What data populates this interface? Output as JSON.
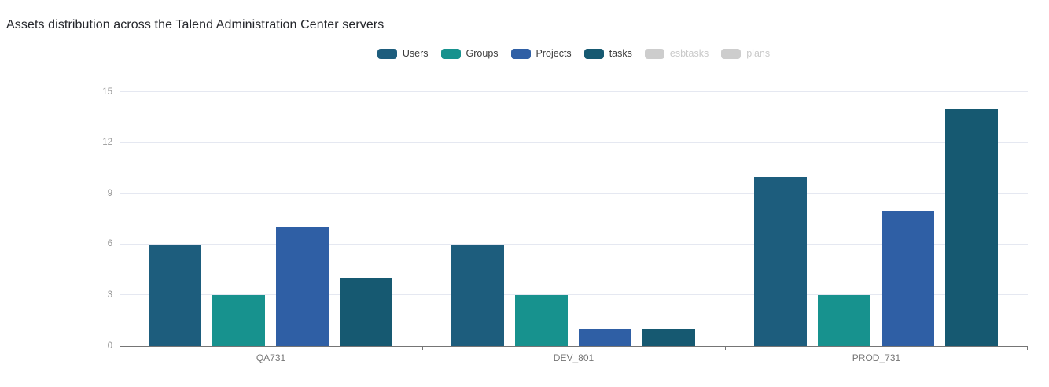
{
  "chart_data": {
    "type": "bar",
    "title": "Assets distribution across the Talend Administration Center servers",
    "categories": [
      "QA731",
      "DEV_801",
      "PROD_731"
    ],
    "series": [
      {
        "name": "Users",
        "color": "#1d5d7d",
        "enabled": true,
        "values": [
          6,
          6,
          10
        ]
      },
      {
        "name": "Groups",
        "color": "#17928e",
        "enabled": true,
        "values": [
          3,
          3,
          3
        ]
      },
      {
        "name": "Projects",
        "color": "#2f5fa5",
        "enabled": true,
        "values": [
          7,
          1,
          8
        ]
      },
      {
        "name": "tasks",
        "color": "#165971",
        "enabled": true,
        "values": [
          4,
          1,
          14
        ]
      },
      {
        "name": "esbtasks",
        "color": "#cdcdcd",
        "enabled": false,
        "values": []
      },
      {
        "name": "plans",
        "color": "#cdcdcd",
        "enabled": false,
        "values": []
      }
    ],
    "ylim": [
      0,
      15
    ],
    "yticks": [
      0,
      3,
      6,
      9,
      12,
      15
    ],
    "grid": true,
    "legend_position": "top-center",
    "colors": {
      "title_text": "#24262b",
      "axis_line": "#757575",
      "gridline": "#e5e8f1",
      "y_tick_text": "#999999",
      "x_tick_text": "#757575",
      "legend_text": "#3c3c3c",
      "legend_disabled_text": "#c9c9c9"
    }
  }
}
